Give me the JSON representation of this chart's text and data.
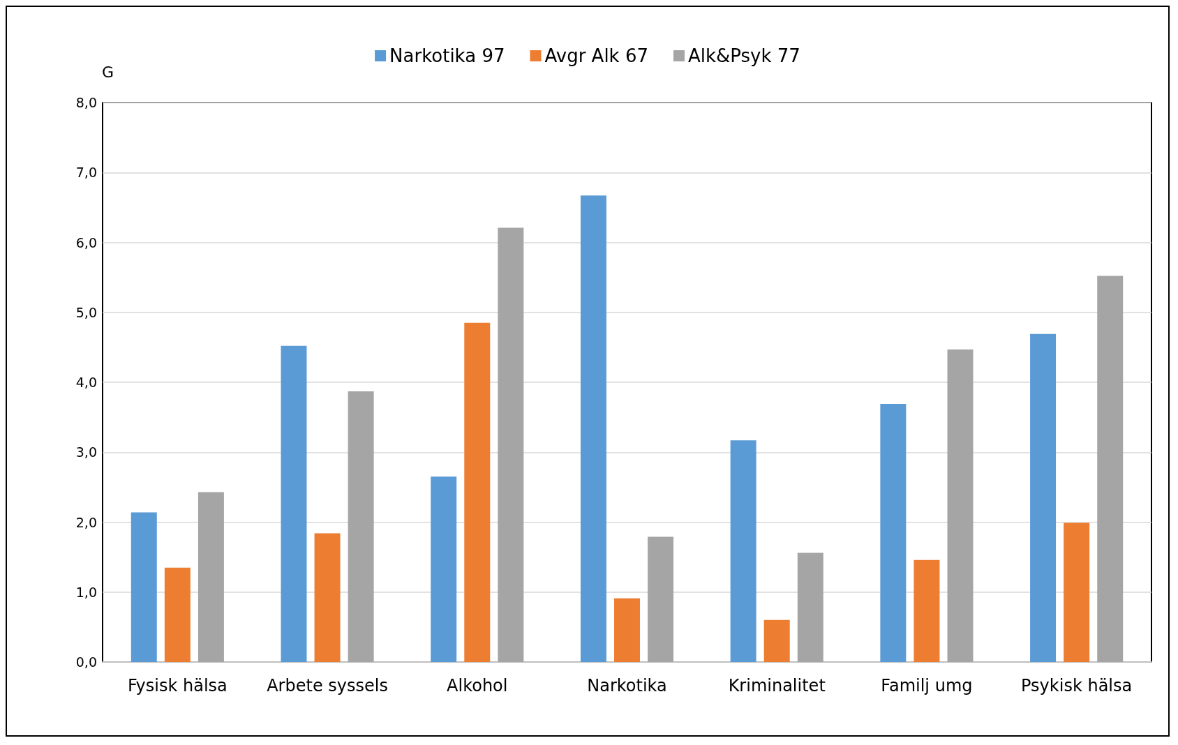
{
  "chart_data": {
    "type": "bar",
    "ylabel": "G",
    "categories": [
      "Fysisk hälsa",
      "Arbete syssels",
      "Alkohol",
      "Narkotika",
      "Kriminalitet",
      "Familj umg",
      "Psykisk hälsa"
    ],
    "series": [
      {
        "name": "Narkotika 97",
        "color": "#5b9bd5",
        "values": [
          2.14,
          4.52,
          2.65,
          6.67,
          3.17,
          3.69,
          4.69
        ]
      },
      {
        "name": "Avgr Alk 67",
        "color": "#ed7d31",
        "values": [
          1.35,
          1.84,
          4.85,
          0.91,
          0.6,
          1.46,
          1.99
        ]
      },
      {
        "name": "Alk&Psyk 77",
        "color": "#a5a5a5",
        "values": [
          2.43,
          3.87,
          6.21,
          1.79,
          1.56,
          4.47,
          5.52
        ]
      }
    ],
    "ylim": [
      0,
      8
    ],
    "yticks": [
      {
        "value": 0,
        "label": "0,0"
      },
      {
        "value": 1,
        "label": "1,0"
      },
      {
        "value": 2,
        "label": "2,0"
      },
      {
        "value": 3,
        "label": "3,0"
      },
      {
        "value": 4,
        "label": "4,0"
      },
      {
        "value": 5,
        "label": "5,0"
      },
      {
        "value": 6,
        "label": "6,0"
      },
      {
        "value": 7,
        "label": "7,0"
      },
      {
        "value": 8,
        "label": "8,0"
      }
    ],
    "grid": "y",
    "legend": "top"
  }
}
